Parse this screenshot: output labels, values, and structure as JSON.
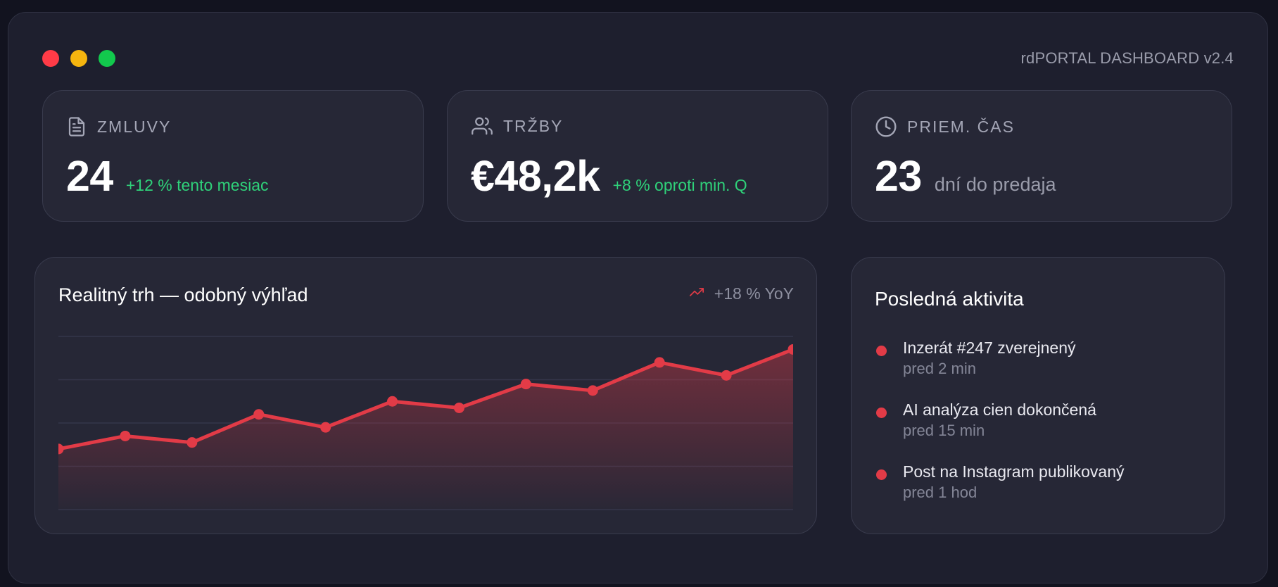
{
  "window": {
    "title": "rdPORTAL DASHBOARD v2.4",
    "controls": [
      {
        "name": "close-dot",
        "color": "#ff3b47"
      },
      {
        "name": "minimize-dot",
        "color": "#f5b50f"
      },
      {
        "name": "maximize-dot",
        "color": "#12c94d"
      }
    ]
  },
  "colors": {
    "accent": "#e23b47",
    "positive": "#2fd27a",
    "muted": "#9a9cab",
    "card_bg": "#262736",
    "window_bg": "#1e1f2e"
  },
  "stats": [
    {
      "icon": "document-icon",
      "label": "ZMLUVY",
      "value": "24",
      "note": "+12 % tento mesiac",
      "note_color": "#2fd27a"
    },
    {
      "icon": "users-icon",
      "label": "TRŽBY",
      "value": "€48,2k",
      "note": "+8 % oproti min. Q",
      "note_color": "#2fd27a"
    },
    {
      "icon": "clock-icon",
      "label": "PRIEM. ČAS",
      "value": "23",
      "note": "dní do predaja",
      "note_color": "#9a9cab"
    }
  ],
  "chart": {
    "title": "Realitný trh — odobný výhľad",
    "badge_icon": "trend-up-icon",
    "badge": "+18 % YoY"
  },
  "chart_data": {
    "type": "area",
    "x": [
      1,
      2,
      3,
      4,
      5,
      6,
      7,
      8,
      9,
      10,
      11,
      12
    ],
    "series": [
      {
        "values": [
          14,
          17,
          15.5,
          22,
          19,
          25,
          23.5,
          29,
          27.5,
          34,
          31,
          37
        ]
      }
    ],
    "ylim": [
      0,
      40
    ],
    "grid": true,
    "color": "#e23b47"
  },
  "activity": {
    "title": "Posledná aktivita",
    "items": [
      {
        "text": "Inzerát #247 zverejnený",
        "time": "pred 2 min"
      },
      {
        "text": "AI analýza cien dokončená",
        "time": "pred 15 min"
      },
      {
        "text": "Post na Instagram publikovaný",
        "time": "pred 1 hod"
      }
    ]
  }
}
